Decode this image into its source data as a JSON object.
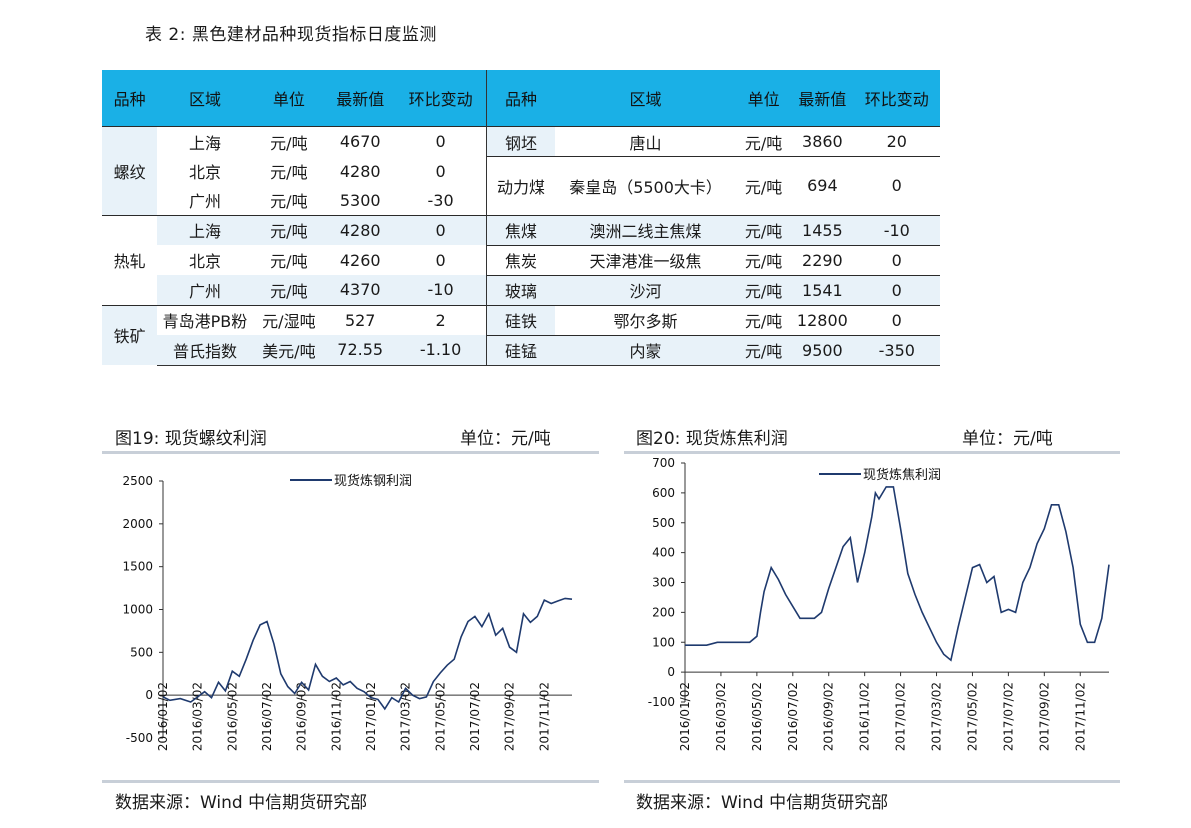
{
  "table_title": "表 2:  黑色建材品种现货指标日度监测",
  "table": {
    "headers_left": [
      "品种",
      "区域",
      "单位",
      "最新值",
      "环比变动"
    ],
    "headers_right": [
      "品种",
      "区域",
      "单位",
      "最新值",
      "环比变动"
    ],
    "left_groups": [
      {
        "name": "螺纹",
        "rows": [
          [
            "上海",
            "元/吨",
            "4670",
            "0"
          ],
          [
            "北京",
            "元/吨",
            "4280",
            "0"
          ],
          [
            "广州",
            "元/吨",
            "5300",
            "-30"
          ]
        ]
      },
      {
        "name": "热轧",
        "rows": [
          [
            "上海",
            "元/吨",
            "4280",
            "0"
          ],
          [
            "北京",
            "元/吨",
            "4260",
            "0"
          ],
          [
            "广州",
            "元/吨",
            "4370",
            "-10"
          ]
        ]
      },
      {
        "name": "铁矿",
        "rows": [
          [
            "青岛港PB粉",
            "元/湿吨",
            "527",
            "2"
          ],
          [
            "普氏指数",
            "美元/吨",
            "72.55",
            "-1.10"
          ]
        ]
      }
    ],
    "right_rows": [
      [
        "钢坯",
        "唐山",
        "元/吨",
        "3860",
        "20"
      ],
      [
        "动力煤",
        "秦皇岛（5500大卡）",
        "元/吨",
        "694",
        "0"
      ],
      [
        "焦煤",
        "澳洲二线主焦煤",
        "元/吨",
        "1455",
        "-10"
      ],
      [
        "焦炭",
        "天津港准一级焦",
        "元/吨",
        "2290",
        "0"
      ],
      [
        "玻璃",
        "沙河",
        "元/吨",
        "1541",
        "0"
      ],
      [
        "硅铁",
        "鄂尔多斯",
        "元/吨",
        "12800",
        "0"
      ],
      [
        "硅锰",
        "内蒙",
        "元/吨",
        "9500",
        "-350"
      ]
    ]
  },
  "chart_left": {
    "title": "图19:  现货螺纹利润",
    "unit": "单位：元/吨",
    "source": "数据来源：Wind  中信期货研究部"
  },
  "chart_right": {
    "title": "图20:  现货炼焦利润",
    "unit": "单位：元/吨",
    "source": "数据来源：Wind  中信期货研究部"
  },
  "chart_data": [
    {
      "type": "line",
      "ylim": [
        -500,
        2500
      ],
      "yticks": [
        "2500",
        "2000",
        "1500",
        "1000",
        "500",
        "0",
        "-500"
      ],
      "ytick_values": [
        2500,
        2000,
        1500,
        1000,
        500,
        0,
        -500
      ],
      "xticks": [
        "2016/01/02",
        "2016/03/02",
        "2016/05/02",
        "2016/07/02",
        "2016/09/02",
        "2016/11/02",
        "2017/01/02",
        "2017/03/02",
        "2017/05/02",
        "2017/07/02",
        "2017/09/02",
        "2017/11/02"
      ],
      "series": [
        {
          "name": "现货炼钢利润",
          "color": "#1f3a6e",
          "x": [
            0,
            0.2,
            0.5,
            0.8,
            1.0,
            1.2,
            1.4,
            1.6,
            1.8,
            2.0,
            2.2,
            2.4,
            2.6,
            2.8,
            3.0,
            3.2,
            3.4,
            3.6,
            3.8,
            4.0,
            4.2,
            4.4,
            4.6,
            4.8,
            5.0,
            5.2,
            5.4,
            5.6,
            5.8,
            6.0,
            6.2,
            6.4,
            6.6,
            6.8,
            7.0,
            7.2,
            7.4,
            7.6,
            7.8,
            8.0,
            8.2,
            8.4,
            8.6,
            8.8,
            9.0,
            9.2,
            9.4,
            9.6,
            9.8,
            10.0,
            10.2,
            10.4,
            10.6,
            10.8,
            11.0,
            11.2,
            11.4,
            11.6,
            11.8
          ],
          "y": [
            -20,
            -60,
            -40,
            -80,
            -20,
            40,
            -30,
            150,
            50,
            280,
            220,
            420,
            640,
            820,
            860,
            600,
            250,
            100,
            20,
            150,
            60,
            360,
            220,
            160,
            200,
            120,
            160,
            80,
            40,
            -30,
            -50,
            -160,
            -30,
            -80,
            80,
            0,
            -40,
            -20,
            160,
            260,
            350,
            420,
            680,
            860,
            920,
            800,
            950,
            700,
            780,
            560,
            500,
            950,
            850,
            920,
            1110,
            1070,
            1100,
            1130,
            1120
          ]
        }
      ]
    },
    {
      "type": "line",
      "ylim": [
        -100,
        700
      ],
      "yticks": [
        "700",
        "600",
        "500",
        "400",
        "300",
        "200",
        "100",
        "0",
        "-100"
      ],
      "ytick_values": [
        700,
        600,
        500,
        400,
        300,
        200,
        100,
        0,
        -100
      ],
      "xticks": [
        "2016/01/02",
        "2016/03/02",
        "2016/05/02",
        "2016/07/02",
        "2016/09/02",
        "2016/11/02",
        "2017/01/02",
        "2017/03/02",
        "2017/05/02",
        "2017/07/02",
        "2017/09/02",
        "2017/11/02"
      ],
      "series": [
        {
          "name": "现货炼焦利润",
          "color": "#1f3a6e",
          "x": [
            0,
            0.3,
            0.6,
            0.9,
            1.2,
            1.5,
            1.8,
            2.0,
            2.1,
            2.2,
            2.4,
            2.6,
            2.8,
            3.0,
            3.2,
            3.4,
            3.6,
            3.8,
            4.0,
            4.2,
            4.4,
            4.6,
            4.8,
            5.0,
            5.2,
            5.3,
            5.4,
            5.6,
            5.8,
            6.0,
            6.2,
            6.4,
            6.6,
            6.8,
            7.0,
            7.2,
            7.4,
            7.6,
            7.8,
            8.0,
            8.2,
            8.4,
            8.6,
            8.8,
            9.0,
            9.2,
            9.4,
            9.6,
            9.8,
            10.0,
            10.2,
            10.4,
            10.6,
            10.8,
            11.0,
            11.2,
            11.4,
            11.6,
            11.8
          ],
          "y": [
            90,
            90,
            90,
            100,
            100,
            100,
            100,
            120,
            200,
            270,
            350,
            310,
            260,
            220,
            180,
            180,
            180,
            200,
            280,
            350,
            420,
            450,
            300,
            400,
            520,
            600,
            580,
            620,
            620,
            480,
            330,
            260,
            200,
            150,
            100,
            60,
            40,
            150,
            250,
            350,
            360,
            300,
            320,
            200,
            210,
            200,
            300,
            350,
            430,
            480,
            560,
            560,
            470,
            350,
            160,
            100,
            100,
            180,
            360
          ]
        }
      ]
    }
  ]
}
